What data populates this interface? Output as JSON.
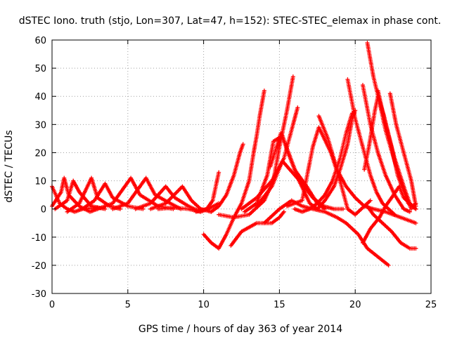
{
  "chart_data": {
    "type": "scatter",
    "title": "dSTEC Iono. truth (stjo, Lon=307, Lat=47, h=152): STEC-STEC_elemax in phase cont.",
    "xlabel": "GPS time / hours of day 363 of year 2014",
    "ylabel": "dSTEC  / TECUs",
    "xlim": [
      0,
      25
    ],
    "ylim": [
      -30,
      60
    ],
    "xticks": [
      0,
      5,
      10,
      15,
      20,
      25
    ],
    "yticks": [
      -30,
      -20,
      -10,
      0,
      10,
      20,
      30,
      40,
      50,
      60
    ],
    "grid": true,
    "marker": "+",
    "color": "#ff0000",
    "series": [
      {
        "points": [
          [
            0,
            8
          ],
          [
            0.5,
            2
          ],
          [
            1,
            0
          ],
          [
            1.5,
            -1
          ],
          [
            2,
            0
          ],
          [
            3,
            0.5
          ]
        ]
      },
      {
        "points": [
          [
            0,
            1
          ],
          [
            0.6,
            6
          ],
          [
            0.8,
            11
          ],
          [
            1.1,
            5
          ],
          [
            1.8,
            1
          ],
          [
            2.5,
            -1
          ],
          [
            3,
            0
          ]
        ]
      },
      {
        "points": [
          [
            0.2,
            0
          ],
          [
            1,
            3
          ],
          [
            1.4,
            10
          ],
          [
            1.8,
            6
          ],
          [
            2.6,
            1
          ],
          [
            3.5,
            0
          ]
        ]
      },
      {
        "points": [
          [
            1,
            -1
          ],
          [
            1.8,
            2
          ],
          [
            2.6,
            11
          ],
          [
            3,
            4
          ],
          [
            3.8,
            1
          ],
          [
            4.5,
            0
          ]
        ]
      },
      {
        "points": [
          [
            2,
            0
          ],
          [
            2.8,
            3
          ],
          [
            3.5,
            9
          ],
          [
            4,
            4
          ],
          [
            5,
            1
          ],
          [
            6,
            0
          ]
        ]
      },
      {
        "points": [
          [
            3,
            0
          ],
          [
            4,
            2
          ],
          [
            5.2,
            11
          ],
          [
            5.8,
            5
          ],
          [
            7,
            1
          ],
          [
            8,
            0
          ]
        ]
      },
      {
        "points": [
          [
            4,
            0
          ],
          [
            5,
            2
          ],
          [
            6.2,
            11
          ],
          [
            6.8,
            5
          ],
          [
            7.8,
            2
          ],
          [
            8.5,
            0
          ]
        ]
      },
      {
        "points": [
          [
            5.5,
            0
          ],
          [
            6.5,
            2
          ],
          [
            7.5,
            8
          ],
          [
            8.1,
            4
          ],
          [
            9,
            1
          ],
          [
            9.8,
            -1
          ]
        ]
      },
      {
        "points": [
          [
            6.5,
            0
          ],
          [
            7.5,
            2
          ],
          [
            8.6,
            8
          ],
          [
            9.2,
            3
          ],
          [
            9.8,
            0
          ],
          [
            10.5,
            -1
          ]
        ]
      },
      {
        "points": [
          [
            7,
            0
          ],
          [
            8,
            0.5
          ],
          [
            9,
            0
          ],
          [
            9.8,
            -1
          ],
          [
            10.3,
            0
          ],
          [
            11,
            2
          ]
        ]
      },
      {
        "points": [
          [
            9.5,
            -1
          ],
          [
            10.2,
            0
          ],
          [
            10.6,
            3
          ],
          [
            11,
            13
          ]
        ]
      },
      {
        "points": [
          [
            10,
            -9
          ],
          [
            10.5,
            -12
          ],
          [
            11,
            -14
          ],
          [
            11.5,
            -9
          ],
          [
            12,
            -3
          ],
          [
            12.5,
            2
          ],
          [
            13,
            10
          ],
          [
            13.3,
            20
          ],
          [
            13.5,
            26
          ],
          [
            13.7,
            33
          ],
          [
            14,
            42
          ]
        ]
      },
      {
        "points": [
          [
            10.5,
            -1
          ],
          [
            11,
            1
          ],
          [
            11.5,
            5
          ],
          [
            12,
            12
          ],
          [
            12.4,
            20
          ],
          [
            12.6,
            23
          ]
        ]
      },
      {
        "points": [
          [
            11,
            -2
          ],
          [
            12,
            -3
          ],
          [
            13,
            -2
          ],
          [
            14,
            3
          ],
          [
            14.6,
            10
          ],
          [
            15,
            22
          ],
          [
            15.5,
            35
          ],
          [
            15.9,
            47
          ]
        ]
      },
      {
        "points": [
          [
            11.8,
            -13
          ],
          [
            12.5,
            -8
          ],
          [
            13.5,
            -5
          ],
          [
            14.5,
            -5
          ],
          [
            15,
            -3
          ],
          [
            15.3,
            -1
          ]
        ]
      },
      {
        "points": [
          [
            12.5,
            0
          ],
          [
            13.5,
            4
          ],
          [
            14.5,
            10
          ],
          [
            15.3,
            18
          ],
          [
            15.8,
            28
          ],
          [
            16.2,
            36
          ]
        ]
      },
      {
        "points": [
          [
            12.7,
            -1
          ],
          [
            13.5,
            2
          ],
          [
            14.2,
            12
          ],
          [
            14.6,
            24
          ],
          [
            15.2,
            26
          ],
          [
            15.5,
            21
          ],
          [
            16,
            14
          ],
          [
            16.8,
            8
          ],
          [
            17.5,
            2
          ],
          [
            18,
            0
          ]
        ]
      },
      {
        "points": [
          [
            14.4,
            15
          ],
          [
            15.1,
            27
          ],
          [
            15.6,
            20
          ],
          [
            16.3,
            10
          ],
          [
            17,
            2
          ],
          [
            17.5,
            0
          ],
          [
            18,
            3
          ],
          [
            18.6,
            8
          ],
          [
            19,
            14
          ],
          [
            19.5,
            23
          ],
          [
            19.8,
            32
          ],
          [
            20,
            35
          ]
        ]
      },
      {
        "points": [
          [
            13.5,
            1
          ],
          [
            14.5,
            8
          ],
          [
            15.2,
            17
          ],
          [
            16.5,
            9
          ],
          [
            17.2,
            4
          ],
          [
            17.9,
            1
          ],
          [
            18.6,
            0
          ],
          [
            19.2,
            0
          ]
        ]
      },
      {
        "points": [
          [
            14,
            -5
          ],
          [
            15,
            0
          ],
          [
            15.8,
            3
          ],
          [
            16.5,
            1
          ],
          [
            17.2,
            0
          ],
          [
            18,
            -1
          ],
          [
            18.8,
            -3
          ],
          [
            19.4,
            -5
          ],
          [
            20.2,
            -9
          ],
          [
            20.8,
            -14
          ],
          [
            21.5,
            -17
          ],
          [
            22.2,
            -20
          ]
        ]
      },
      {
        "points": [
          [
            16,
            0
          ],
          [
            16.5,
            -1
          ],
          [
            17,
            0
          ],
          [
            17.5,
            2
          ],
          [
            18,
            5
          ],
          [
            18.5,
            10
          ],
          [
            19,
            18
          ],
          [
            19.4,
            27
          ],
          [
            19.8,
            34
          ]
        ]
      },
      {
        "points": [
          [
            15.5,
            1
          ],
          [
            16.5,
            3
          ],
          [
            17.2,
            22
          ],
          [
            17.6,
            29
          ],
          [
            18.4,
            20
          ],
          [
            19,
            10
          ],
          [
            19.5,
            0
          ],
          [
            20,
            -2
          ],
          [
            21,
            3
          ]
        ]
      },
      {
        "points": [
          [
            17.6,
            33
          ],
          [
            18.2,
            25
          ],
          [
            18.8,
            14
          ],
          [
            19.4,
            8
          ],
          [
            20,
            4
          ],
          [
            20.6,
            1
          ],
          [
            21.2,
            0
          ],
          [
            22,
            -1
          ],
          [
            23,
            -3
          ],
          [
            24,
            -5
          ]
        ]
      },
      {
        "points": [
          [
            19.5,
            46
          ],
          [
            20,
            32
          ],
          [
            20.5,
            22
          ],
          [
            21,
            12
          ],
          [
            21.4,
            6
          ],
          [
            21.8,
            2
          ],
          [
            22.2,
            0
          ],
          [
            22.6,
            -2
          ]
        ]
      },
      {
        "points": [
          [
            20.5,
            44
          ],
          [
            21,
            30
          ],
          [
            21.5,
            20
          ],
          [
            22,
            12
          ],
          [
            22.6,
            5
          ],
          [
            23.2,
            0
          ],
          [
            23.6,
            -1
          ]
        ]
      },
      {
        "points": [
          [
            20.8,
            59
          ],
          [
            21.2,
            47
          ],
          [
            21.6,
            38
          ],
          [
            22,
            28
          ],
          [
            22.6,
            17
          ],
          [
            23.1,
            8
          ],
          [
            23.5,
            2
          ],
          [
            24,
            0
          ]
        ]
      },
      {
        "points": [
          [
            20.6,
            14
          ],
          [
            20.9,
            22
          ],
          [
            21.3,
            35
          ],
          [
            21.5,
            40
          ],
          [
            21.9,
            33
          ],
          [
            22.4,
            22
          ],
          [
            22.8,
            12
          ],
          [
            23.3,
            5
          ],
          [
            23.7,
            0
          ]
        ]
      },
      {
        "points": [
          [
            21.5,
            42
          ],
          [
            22,
            30
          ],
          [
            22.6,
            18
          ],
          [
            23.2,
            8
          ],
          [
            23.6,
            2
          ],
          [
            24,
            0
          ]
        ]
      },
      {
        "points": [
          [
            22.3,
            41
          ],
          [
            22.7,
            30
          ],
          [
            23.2,
            20
          ],
          [
            23.7,
            10
          ],
          [
            24,
            1
          ]
        ]
      },
      {
        "points": [
          [
            20.8,
            1
          ],
          [
            21.2,
            -2
          ],
          [
            21.8,
            -5
          ],
          [
            22.4,
            -8
          ],
          [
            23,
            -12
          ],
          [
            23.6,
            -14
          ],
          [
            24,
            -14
          ]
        ]
      },
      {
        "points": [
          [
            20.5,
            -12
          ],
          [
            21,
            -7
          ],
          [
            21.6,
            -3
          ],
          [
            22,
            1
          ],
          [
            22.4,
            4
          ],
          [
            22.9,
            8
          ],
          [
            23.2,
            4
          ],
          [
            23.8,
            1
          ],
          [
            24,
            2
          ]
        ]
      }
    ]
  }
}
